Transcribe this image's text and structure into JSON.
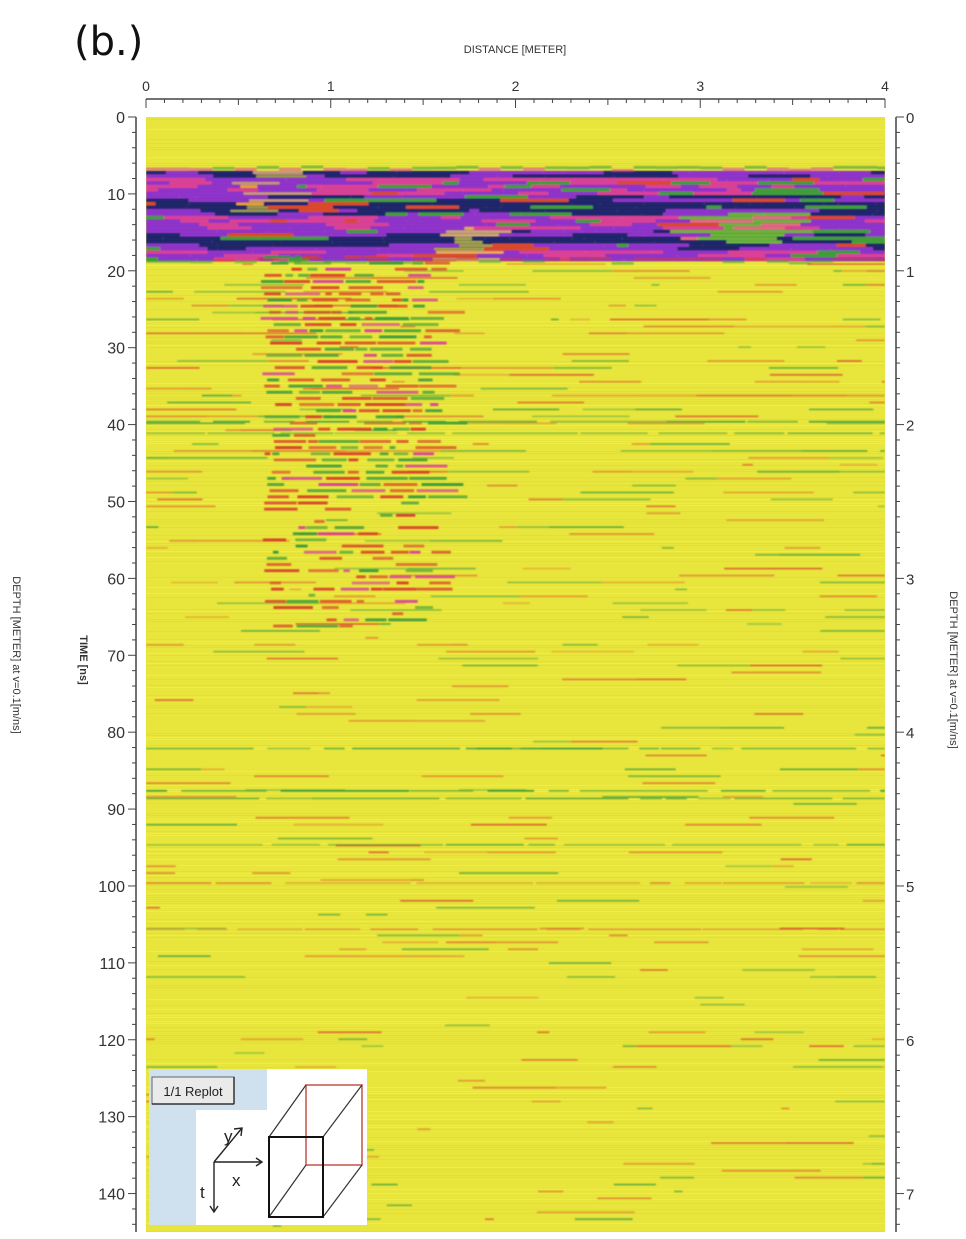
{
  "panel_label": "(b.)",
  "inset": {
    "replot_button": "1/1 Replot",
    "axis_y": "y",
    "axis_x": "x",
    "axis_t": "t"
  },
  "chart_data": {
    "type": "heatmap",
    "title": "",
    "xlabel": "DISTANCE [METER]",
    "ylabel": "TIME [ns]",
    "ylabel_right": "DEPTH [METER] at v=0.1[m/ns]",
    "ylabel_left_outer": "DEPTH [METER] at v=0.1[m/ns]",
    "xlim": [
      0,
      4
    ],
    "ylim": [
      0,
      145
    ],
    "ylim_right": [
      0,
      7.25
    ],
    "x_ticks": [
      0,
      1,
      2,
      3,
      4
    ],
    "x_tick_labels": [
      "0",
      "1",
      "2",
      "3",
      "4"
    ],
    "y_ticks": [
      0,
      10,
      20,
      30,
      40,
      50,
      60,
      70,
      80,
      90,
      100,
      110,
      120,
      130,
      140
    ],
    "y_tick_labels": [
      "0",
      "10",
      "20",
      "30",
      "40",
      "50",
      "60",
      "70",
      "80",
      "90",
      "100",
      "110",
      "120",
      "130",
      "140"
    ],
    "y_right_ticks": [
      0,
      1,
      2,
      3,
      4,
      5,
      6,
      7
    ],
    "y_right_tick_labels": [
      "0",
      "1",
      "2",
      "3",
      "4",
      "5",
      "6",
      "7"
    ],
    "colors": {
      "background": "#e8e63c",
      "strong_negative": "#161a6e",
      "negative": "#8a2ad0",
      "mid_negative": "#d83a9a",
      "positive": "#d8402a",
      "weak": "#3a9a3a"
    },
    "features": [
      {
        "label": "strong surface reflection band",
        "time_ns": [
          7,
          18
        ],
        "distance_m": [
          0,
          4
        ]
      },
      {
        "label": "disturbed zone",
        "time_ns": [
          18,
          65
        ],
        "distance_m": [
          0.6,
          1.6
        ]
      },
      {
        "label": "flat reflectors",
        "time_ns": [
          82,
          100
        ],
        "distance_m": [
          0,
          4
        ]
      }
    ]
  }
}
